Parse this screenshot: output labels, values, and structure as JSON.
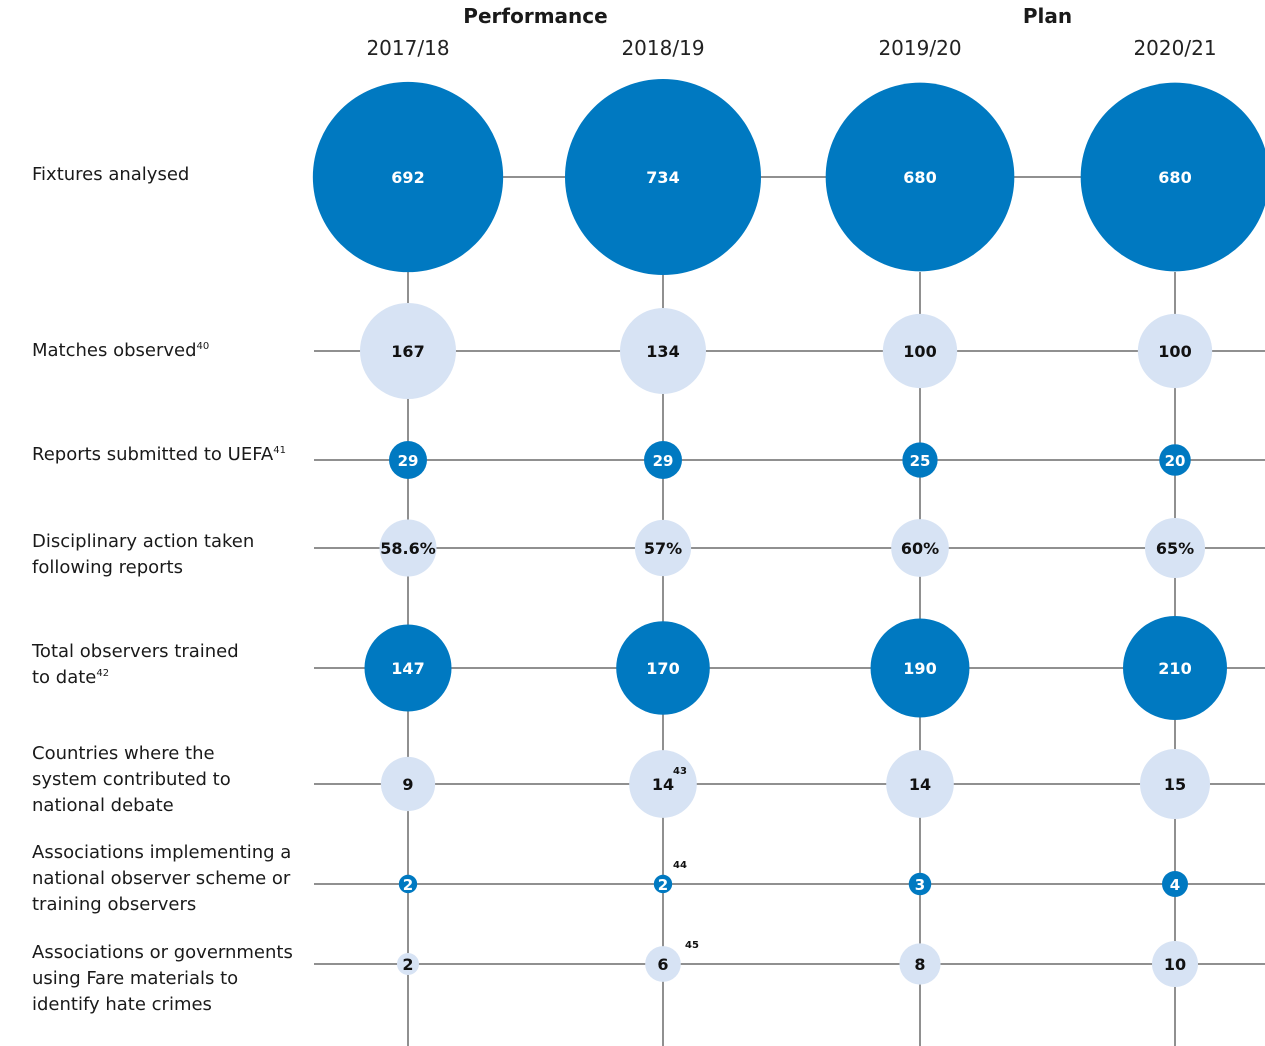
{
  "chart_data": {
    "type": "bubble-matrix",
    "groups": [
      {
        "label": "Performance",
        "years": [
          "2017/18",
          "2018/19"
        ]
      },
      {
        "label": "Plan",
        "years": [
          "2019/20",
          "2020/21"
        ]
      }
    ],
    "years": [
      "2017/18",
      "2018/19",
      "2019/20",
      "2020/21"
    ],
    "rows": [
      {
        "label": "Fixtures analysed",
        "sup": "",
        "style": "dark",
        "values": [
          "692",
          "734",
          "680",
          "680"
        ],
        "notes": [
          "",
          "",
          "",
          ""
        ]
      },
      {
        "label": "Matches observed",
        "sup": "40",
        "style": "light",
        "values": [
          "167",
          "134",
          "100",
          "100"
        ],
        "notes": [
          "",
          "",
          "",
          ""
        ]
      },
      {
        "label": "Reports submitted to UEFA",
        "sup": "41",
        "style": "dark",
        "values": [
          "29",
          "29",
          "25",
          "20"
        ],
        "notes": [
          "",
          "",
          "",
          ""
        ]
      },
      {
        "label": "Disciplinary action taken following reports",
        "sup": "",
        "style": "light",
        "values": [
          "58.6%",
          "57%",
          "60%",
          "65%"
        ],
        "notes": [
          "",
          "",
          "",
          ""
        ]
      },
      {
        "label": "Total observers trained to date",
        "sup": "42",
        "style": "dark",
        "values": [
          "147",
          "170",
          "190",
          "210"
        ],
        "notes": [
          "",
          "",
          "",
          ""
        ]
      },
      {
        "label": "Countries where the system contributed to national debate",
        "sup": "",
        "style": "light",
        "values": [
          "9",
          "14",
          "14",
          "15"
        ],
        "notes": [
          "",
          "43",
          "",
          ""
        ]
      },
      {
        "label": "Associations implementing a national observer scheme or training observers",
        "sup": "",
        "style": "dark",
        "values": [
          "2",
          "2",
          "3",
          "4"
        ],
        "notes": [
          "",
          "44",
          "",
          ""
        ]
      },
      {
        "label": "Associations or governments using Fare materials to identify hate crimes",
        "sup": "",
        "style": "light",
        "values": [
          "2",
          "6",
          "8",
          "10"
        ],
        "notes": [
          "",
          "45",
          "",
          ""
        ]
      }
    ],
    "colors": {
      "dark": "#0079c1",
      "light": "#d7e3f4",
      "line": "#222222",
      "dark_text": "#ffffff",
      "light_text": "#111111"
    }
  }
}
